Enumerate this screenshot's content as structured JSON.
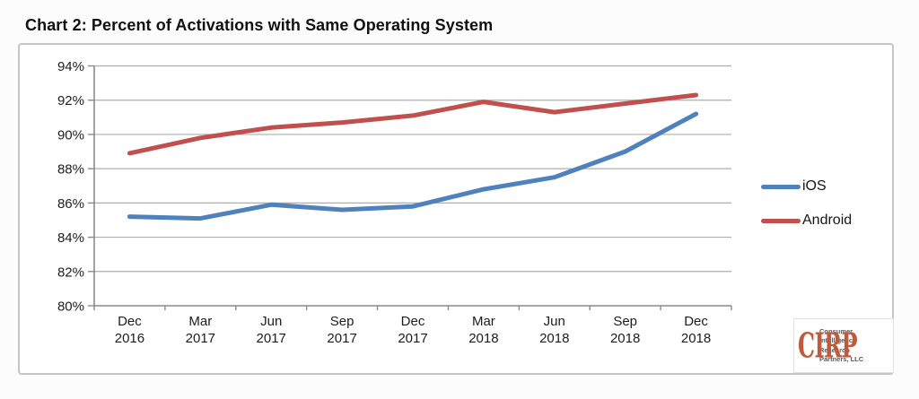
{
  "title": "Chart 2: Percent of Activations with Same Operating System",
  "chart_data": {
    "type": "line",
    "title": "Chart 2: Percent of Activations with Same Operating System",
    "categories": [
      "Dec 2016",
      "Mar 2017",
      "Jun 2017",
      "Sep 2017",
      "Dec 2017",
      "Mar 2018",
      "Jun 2018",
      "Sep 2018",
      "Dec 2018"
    ],
    "series": [
      {
        "name": "iOS",
        "color": "#4F81BD",
        "values": [
          85.2,
          85.1,
          85.9,
          85.6,
          85.8,
          86.8,
          87.5,
          89.0,
          91.2
        ]
      },
      {
        "name": "Android",
        "color": "#C0504D",
        "values": [
          88.9,
          89.8,
          90.4,
          90.7,
          91.1,
          91.9,
          91.3,
          91.8,
          92.3
        ]
      }
    ],
    "ylim": [
      80,
      94
    ],
    "ytick_step": 2,
    "ytick_suffix": "%",
    "xlabel": "",
    "ylabel": "",
    "grid": true,
    "legend_position": "right"
  },
  "colors": {
    "gridline": "#aeaeae",
    "axis": "#8a8a8a",
    "tick_label": "#1c1c1c"
  },
  "logo": {
    "acronym": "CIRP",
    "lines": [
      "Consumer",
      "Intelligence",
      "Research",
      "Partners, LLC"
    ],
    "color": "#bf5a3c"
  }
}
